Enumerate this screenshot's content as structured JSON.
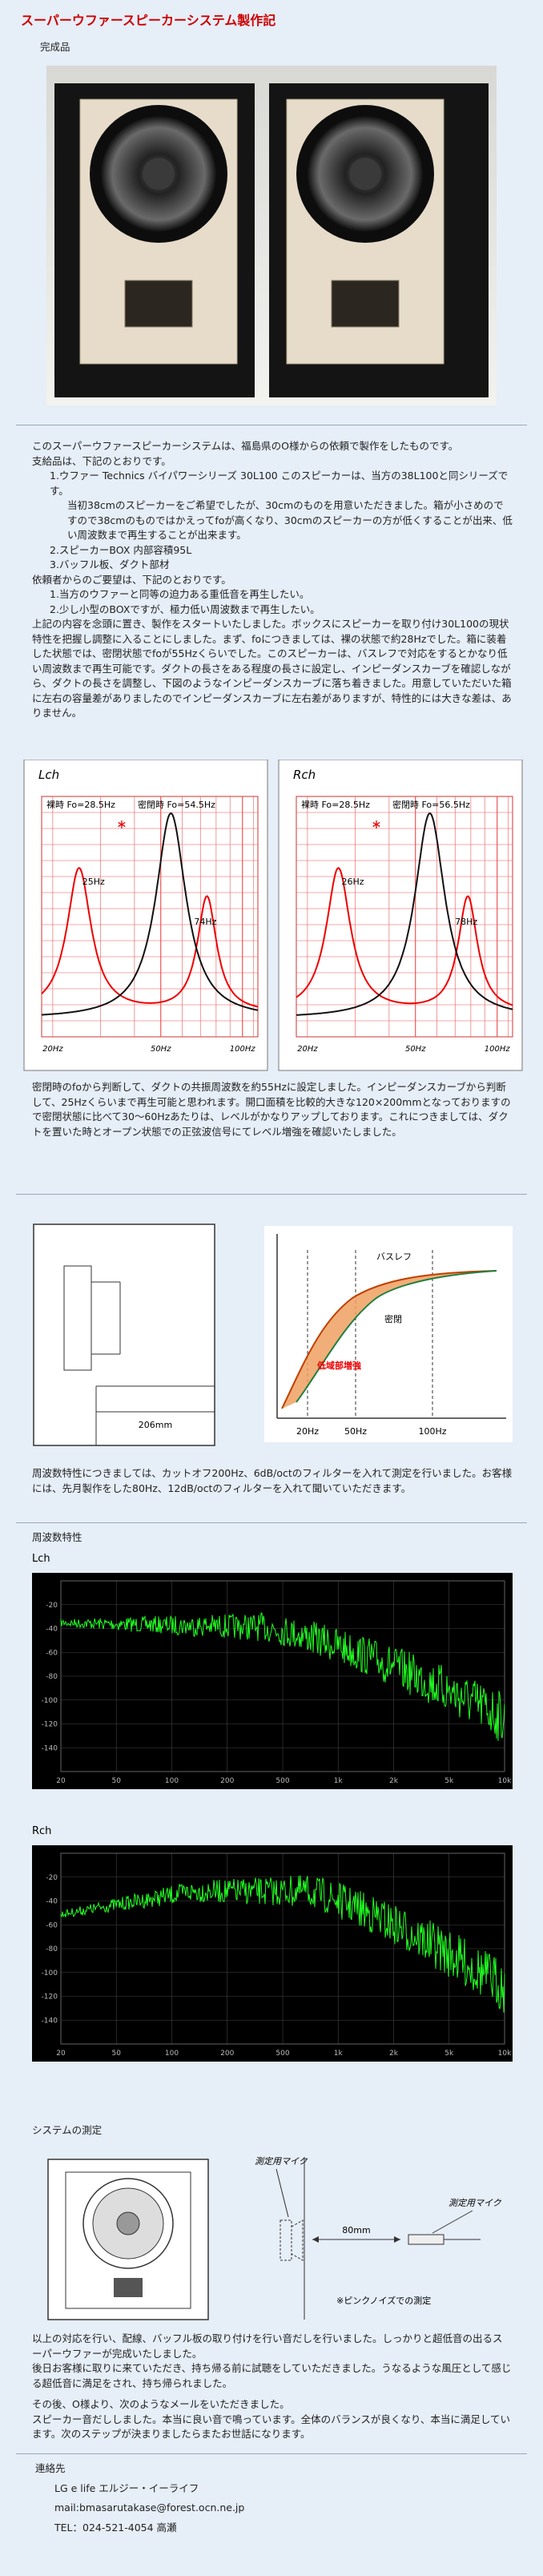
{
  "header": {
    "title": "スーパーウファースピーカーシステム製作記",
    "photo_caption": "完成品"
  },
  "intro": {
    "lines": [
      "このスーパーウファースピーカーシステムは、福島県のO様からの依頼で製作をしたものです。",
      "支給品は、下記のとおりです。",
      "1.ウファー Technics バイパワーシリーズ 30L100 このスピーカーは、当方の38L100と同シリーズです。",
      "当初38cmのスピーカーをご希望でしたが、30cmのものを用意いただきました。箱が小さめのですので38cmのものではかえってfoが高くなり、30cmのスピーカーの方が低くすることが出来、低い周波数まで再生することが出来ます。",
      "2.スピーカーBOX 内部容積95L",
      "3.バッフル板、ダクト部材",
      "依頼者からのご要望は、下記のとおりです。",
      "1.当方のウファーと同等の迫力ある重低音を再生したい。",
      "2.少し小型のBOXですが、極力低い周波数まで再生したい。",
      "上記の内容を念頭に置き、製作をスタートいたしました。ボックスにスピーカーを取り付け30L100の現状特性を把握し調整に入ることにしました。まず、foにつきましては、裸の状態で約28Hzでした。箱に装着した状態では、密閉状態でfoが55Hzくらいでした。このスピーカーは、バスレフで対応をするとかなり低い周波数まで再生可能です。ダクトの長さをある程度の長さに設定し、インピーダンスカーブを確認しながら、ダクトの長さを調整し、下図のようなインピーダンスカーブに落ち着きました。用意していただいた箱に左右の容量差がありましたのでインピーダンスカーブに左右差がありますが、特性的には大きな差は、ありません。"
    ]
  },
  "impedance": {
    "charts": [
      {
        "channel": "Lch",
        "bare": "裸時 Fo=28.5Hz",
        "sealed": "密閉時 Fo=54.5Hz",
        "peak_low": "25Hz",
        "peak_high": "74Hz",
        "x_labels": [
          "20Hz",
          "50Hz",
          "100Hz"
        ]
      },
      {
        "channel": "Rch",
        "bare": "裸時 Fo=28.5Hz",
        "sealed": "密閉時 Fo=56.5Hz",
        "peak_low": "26Hz",
        "peak_high": "78Hz",
        "x_labels": [
          "20Hz",
          "50Hz",
          "100Hz"
        ]
      }
    ]
  },
  "duct_text": "密閉時のfoから判断して、ダクトの共振周波数を約55Hzに設定しました。インピーダンスカーブから判断して、25Hzくらいまで再生可能と思われます。開口面積を比較的大きな120×200mmとなっておりますので密閉状態に比べて30～60Hzあたりは、レベルがかなりアップしております。これにつきましては、ダクトを置いた時とオープン状態での正弦波信号にてレベル増強を確認いたしました。",
  "bass_diagram": {
    "dimension": "206mm",
    "reflex": "バスレフ",
    "sealed": "密閉",
    "boost": "低域部増強",
    "x_labels": [
      "20Hz",
      "50Hz",
      "100Hz"
    ]
  },
  "response_text": "周波数特性につきましては、カットオフ200Hz、6dB/octのフィルターを入れて測定を行いました。お客様には、先月製作をした80Hz、12dB/octのフィルターを入れて聞いていただきます。",
  "response": {
    "title": "周波数特性",
    "charts": [
      {
        "channel": "Lch",
        "y_labels": [
          "-20",
          "-40",
          "-60",
          "-80",
          "-100",
          "-120",
          "-140"
        ],
        "x_labels": [
          "20",
          "50",
          "100",
          "200",
          "500",
          "1k",
          "2k",
          "5k",
          "10k"
        ]
      },
      {
        "channel": "Rch",
        "y_labels": [
          "-20",
          "-40",
          "-60",
          "-80",
          "-100",
          "-120",
          "-140"
        ],
        "x_labels": [
          "20",
          "50",
          "100",
          "200",
          "500",
          "1k",
          "2k",
          "5k",
          "10k"
        ]
      }
    ]
  },
  "measurement": {
    "title": "システムの測定",
    "mic_label_top": "測定用マイク",
    "distance": "80mm",
    "mic_label_right": "測定用マイク",
    "note": "※ピンクノイズでの測定"
  },
  "closing": {
    "lines": [
      "以上の対応を行い、配線、バッフル板の取り付けを行い音だしを行いました。しっかりと超低音の出るスーパーウファーが完成いたしました。",
      "後日お客様に取りに来ていただき、持ち帰る前に試聴をしていただきました。うなるような風圧として感じる超低音に満足をされ、持ち帰られました。",
      "その後、O様より、次のようなメールをいただきました。",
      "スピーカー音だししました。本当に良い音で鳴っています。全体のバランスが良くなり、本当に満足しています。次のステップが決まりましたらまたお世話になります。"
    ]
  },
  "contact": {
    "title": "連絡先",
    "lines": [
      "LG e life エルジー・イーライフ",
      "mail:bmasarutakase@forest.ocn.ne.jp",
      "TEL：024-521-4054 高瀬"
    ]
  }
}
